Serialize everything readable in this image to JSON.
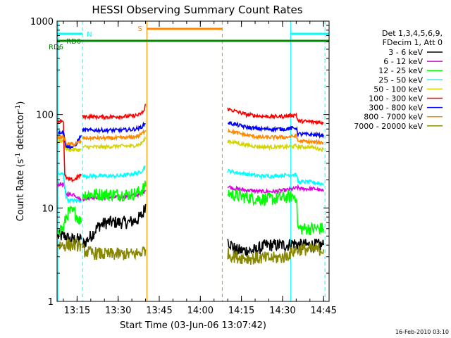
{
  "chart_data": {
    "type": "line",
    "title": "HESSI Observing Summary Count Rates",
    "xlabel": "Start Time (03-Jun-06 13:07:42)",
    "ylabel_main": "Count Rate (s",
    "ylabel_sup1": "-1",
    "ylabel_mid": " detector",
    "ylabel_sup2": "-1",
    "ylabel_end": ")",
    "yscale": "log",
    "ylim": [
      1,
      1000
    ],
    "xlim": [
      "13:07:42",
      "14:47:00"
    ],
    "x_ticks": [
      "13:15",
      "13:30",
      "13:45",
      "14:00",
      "14:15",
      "14:30",
      "14:45"
    ],
    "y_ticks": [
      "1",
      "10",
      "100",
      "1000"
    ],
    "timestamp": "16-Feb-2010 03:10",
    "legend": {
      "header1": "Det 1,3,4,5,6,9,",
      "header2": "FDecim 1, Att 0",
      "entries": [
        {
          "label": "3 - 6 keV",
          "color": "#000000"
        },
        {
          "label": "6 - 12 keV",
          "color": "#e000e0"
        },
        {
          "label": "12 - 25 keV",
          "color": "#00ff00"
        },
        {
          "label": "25 - 50 keV",
          "color": "#00ffff"
        },
        {
          "label": "50 - 100 keV",
          "color": "#d4d400"
        },
        {
          "label": "100 - 300 keV",
          "color": "#ff0000"
        },
        {
          "label": "300 - 800 keV",
          "color": "#0000ff"
        },
        {
          "label": "800 - 7000 keV",
          "color": "#ff8800"
        },
        {
          "label": "7000 - 20000 keV",
          "color": "#888800"
        }
      ]
    },
    "flags": [
      {
        "label": "S",
        "color": "#ff8800",
        "start": "13:40:30",
        "end": "14:08:00"
      },
      {
        "label": "N",
        "color": "#00ffff",
        "start": "13:07:42",
        "end": "13:17:00"
      },
      {
        "label": "N",
        "color": "#00ffff",
        "start": "14:33:00",
        "end": "14:47:00"
      },
      {
        "label": "RD0",
        "color": "#008800",
        "start": "13:17:00",
        "end": "14:47:00"
      },
      {
        "label": "RD6",
        "color": "#008800",
        "start": "13:07:42",
        "end": "14:47:00"
      }
    ],
    "vlines": [
      {
        "time": "13:08:00",
        "color": "#00ffff",
        "style": "solid"
      },
      {
        "time": "13:17:00",
        "color": "#00ffff",
        "style": "dashed"
      },
      {
        "time": "13:40:30",
        "color": "#ff8800",
        "style": "solid"
      },
      {
        "time": "14:08:00",
        "color": "#ff8800",
        "style": "dashed"
      },
      {
        "time": "14:33:00",
        "color": "#00ffff",
        "style": "solid"
      },
      {
        "time": "14:45:30",
        "color": "#00ffff",
        "style": "dashed"
      }
    ],
    "series": [
      {
        "name": "3 - 6 keV",
        "color": "#000000",
        "segments": [
          {
            "t": [
              "13:08:00",
              "13:10:00",
              "13:11:00",
              "13:12:00",
              "13:14:00",
              "13:16:30"
            ],
            "v": [
              5,
              5,
              5,
              4.6,
              4.6,
              4.6
            ]
          },
          {
            "t": [
              "13:17:00",
              "13:20:00",
              "13:23:00",
              "13:26:00",
              "13:30:00",
              "13:34:00",
              "13:37:00",
              "13:39:00",
              "13:40:00"
            ],
            "v": [
              4,
              5,
              6.5,
              7,
              7,
              7,
              7.5,
              8.5,
              11
            ]
          },
          {
            "t": [
              "14:10:00",
              "14:13:00",
              "14:16:00",
              "14:20:00",
              "14:24:00",
              "14:28:00",
              "14:32:00",
              "14:34:00",
              "14:36:00",
              "14:40:00",
              "14:45:00"
            ],
            "v": [
              4.5,
              3.5,
              3.5,
              3.5,
              4,
              4,
              4,
              4.2,
              4,
              4,
              4
            ]
          }
        ]
      },
      {
        "name": "6 - 12 keV",
        "color": "#e000e0",
        "segments": [
          {
            "t": [
              "13:08:00",
              "13:10:00",
              "13:11:00",
              "13:12:00",
              "13:14:00",
              "13:16:30"
            ],
            "v": [
              18,
              18,
              14,
              14,
              14,
              12
            ]
          },
          {
            "t": [
              "13:17:00",
              "13:20:00",
              "13:25:00",
              "13:30:00",
              "13:35:00",
              "13:38:00",
              "13:40:00"
            ],
            "v": [
              12.5,
              13,
              13,
              13,
              13.5,
              14,
              15.5
            ]
          },
          {
            "t": [
              "14:10:00",
              "14:13:00",
              "14:17:00",
              "14:22:00",
              "14:27:00",
              "14:31:00",
              "14:34:00",
              "14:35:30",
              "14:37:00",
              "14:42:00",
              "14:45:00"
            ],
            "v": [
              17,
              16,
              15.5,
              15,
              15,
              15.5,
              16,
              16.5,
              16,
              16,
              15
            ]
          }
        ]
      },
      {
        "name": "12 - 25 keV",
        "color": "#00ff00",
        "segments": [
          {
            "t": [
              "13:08:00",
              "13:10:00",
              "13:11:00",
              "13:12:00",
              "13:14:00",
              "13:16:30"
            ],
            "v": [
              6,
              6,
              8,
              9,
              9,
              7
            ]
          },
          {
            "t": [
              "13:17:00",
              "13:20:00",
              "13:25:00",
              "13:30:00",
              "13:35:00",
              "13:38:00",
              "13:40:00"
            ],
            "v": [
              14,
              14,
              14,
              14,
              14,
              15,
              17
            ]
          },
          {
            "t": [
              "14:10:00",
              "14:13:00",
              "14:17:00",
              "14:22:00",
              "14:27:00",
              "14:31:00",
              "14:35:00",
              "14:35:40",
              "14:40:00",
              "14:45:00"
            ],
            "v": [
              14.5,
              13.5,
              13,
              12.5,
              12.5,
              13,
              13.5,
              6,
              6,
              6
            ]
          }
        ]
      },
      {
        "name": "25 - 50 keV",
        "color": "#00ffff",
        "segments": [
          {
            "t": [
              "13:08:00",
              "13:10:00",
              "13:11:00",
              "13:12:00",
              "13:14:00",
              "13:16:30"
            ],
            "v": [
              23,
              23,
              13,
              12,
              12,
              12
            ]
          },
          {
            "t": [
              "13:17:00",
              "13:20:00",
              "13:25:00",
              "13:30:00",
              "13:35:00",
              "13:38:00",
              "13:40:00"
            ],
            "v": [
              22,
              22,
              22,
              22,
              23,
              24,
              28
            ]
          },
          {
            "t": [
              "14:10:00",
              "14:13:00",
              "14:17:00",
              "14:22:00",
              "14:27:00",
              "14:31:00",
              "14:35:00",
              "14:35:40",
              "14:40:00",
              "14:45:00"
            ],
            "v": [
              25,
              24,
              23,
              22,
              22,
              22.5,
              23,
              19,
              19,
              18
            ]
          }
        ]
      },
      {
        "name": "50 - 100 keV",
        "color": "#d4d400",
        "segments": [
          {
            "t": [
              "13:08:00",
              "13:10:00",
              "13:11:00",
              "13:12:00",
              "13:14:00",
              "13:16:30"
            ],
            "v": [
              52,
              52,
              43,
              42,
              42,
              42
            ]
          },
          {
            "t": [
              "13:17:00",
              "13:20:00",
              "13:25:00",
              "13:30:00",
              "13:35:00",
              "13:38:00",
              "13:40:00"
            ],
            "v": [
              45,
              45,
              45,
              46,
              46,
              48,
              55
            ]
          },
          {
            "t": [
              "14:10:00",
              "14:13:00",
              "14:17:00",
              "14:22:00",
              "14:27:00",
              "14:31:00",
              "14:35:00",
              "14:35:40",
              "14:40:00",
              "14:45:00"
            ],
            "v": [
              52,
              50,
              47,
              45,
              45,
              45,
              46,
              45,
              45,
              42
            ]
          }
        ]
      },
      {
        "name": "100 - 300 keV",
        "color": "#ff0000",
        "segments": [
          {
            "t": [
              "13:08:00",
              "13:10:00",
              "13:10:30",
              "13:12:00",
              "13:14:00",
              "13:16:30"
            ],
            "v": [
              86,
              86,
              22,
              20,
              20,
              23
            ]
          },
          {
            "t": [
              "13:17:00",
              "13:20:00",
              "13:25:00",
              "13:30:00",
              "13:35:00",
              "13:38:00",
              "13:39:30",
              "13:40:00"
            ],
            "v": [
              95,
              95,
              94,
              95,
              96,
              100,
              110,
              130
            ]
          },
          {
            "t": [
              "14:10:00",
              "14:13:00",
              "14:17:00",
              "14:22:00",
              "14:27:00",
              "14:31:00",
              "14:35:00",
              "14:35:40",
              "14:40:00",
              "14:45:00"
            ],
            "v": [
              115,
              108,
              100,
              96,
              95,
              96,
              100,
              85,
              84,
              82
            ]
          }
        ]
      },
      {
        "name": "300 - 800 keV",
        "color": "#0000ff",
        "segments": [
          {
            "t": [
              "13:08:00",
              "13:10:00",
              "13:11:00",
              "13:12:00",
              "13:14:00",
              "13:16:30"
            ],
            "v": [
              65,
              65,
              46,
              45,
              45,
              60
            ]
          },
          {
            "t": [
              "13:17:00",
              "13:20:00",
              "13:25:00",
              "13:30:00",
              "13:35:00",
              "13:38:00",
              "13:40:00"
            ],
            "v": [
              68,
              68,
              68,
              68,
              69,
              72,
              80
            ]
          },
          {
            "t": [
              "14:10:00",
              "14:13:00",
              "14:17:00",
              "14:22:00",
              "14:27:00",
              "14:31:00",
              "14:35:00",
              "14:35:40",
              "14:40:00",
              "14:45:00"
            ],
            "v": [
              82,
              78,
              73,
              70,
              70,
              70,
              72,
              62,
              61,
              60
            ]
          }
        ]
      },
      {
        "name": "800 - 7000 keV",
        "color": "#ff8800",
        "segments": [
          {
            "t": [
              "13:08:00",
              "13:10:00",
              "13:11:00",
              "13:12:00",
              "13:14:00",
              "13:16:30"
            ],
            "v": [
              57,
              57,
              50,
              48,
              48,
              52
            ]
          },
          {
            "t": [
              "13:17:00",
              "13:20:00",
              "13:25:00",
              "13:30:00",
              "13:35:00",
              "13:38:00",
              "13:40:00"
            ],
            "v": [
              56,
              56,
              56,
              56,
              57,
              60,
              68
            ]
          },
          {
            "t": [
              "14:10:00",
              "14:13:00",
              "14:17:00",
              "14:22:00",
              "14:27:00",
              "14:31:00",
              "14:35:00",
              "14:35:40",
              "14:40:00",
              "14:45:00"
            ],
            "v": [
              68,
              64,
              60,
              57,
              57,
              57,
              59,
              52,
              51,
              50
            ]
          }
        ]
      },
      {
        "name": "7000 - 20000 keV",
        "color": "#888800",
        "segments": [
          {
            "t": [
              "13:08:00",
              "13:10:00",
              "13:12:00",
              "13:14:00",
              "13:16:30"
            ],
            "v": [
              4,
              4,
              4,
              4,
              4
            ]
          },
          {
            "t": [
              "13:17:00",
              "13:20:00",
              "13:25:00",
              "13:30:00",
              "13:35:00",
              "13:38:00",
              "13:40:00"
            ],
            "v": [
              3.5,
              3.3,
              3.2,
              3.2,
              3.2,
              3.3,
              3.6
            ]
          },
          {
            "t": [
              "14:10:00",
              "14:13:00",
              "14:17:00",
              "14:22:00",
              "14:27:00",
              "14:31:00",
              "14:35:00",
              "14:40:00",
              "14:45:00"
            ],
            "v": [
              3.2,
              3.0,
              2.9,
              2.9,
              2.9,
              3.0,
              3.6,
              3.6,
              3.6
            ]
          }
        ]
      }
    ]
  }
}
